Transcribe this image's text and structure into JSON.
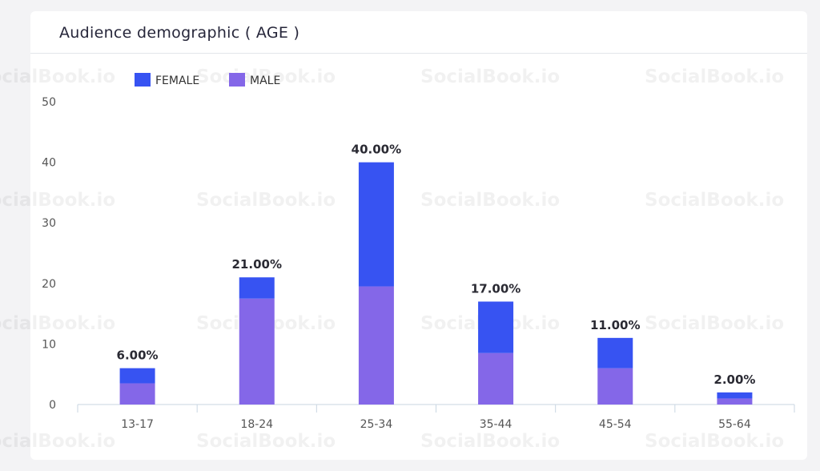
{
  "title": "Audience demographic ( AGE )",
  "watermark": "SocialBook.io",
  "chart_data": {
    "type": "bar",
    "stacked": true,
    "categories": [
      "13-17",
      "18-24",
      "25-34",
      "35-44",
      "45-54",
      "55-64"
    ],
    "series": [
      {
        "name": "MALE",
        "color": "#8467e8",
        "values": [
          3.5,
          17.5,
          19.5,
          8.5,
          6.0,
          1.0
        ]
      },
      {
        "name": "FEMALE",
        "color": "#3753f2",
        "values": [
          2.5,
          3.5,
          20.5,
          8.5,
          5.0,
          1.0
        ]
      }
    ],
    "totals_labels": [
      "6.00%",
      "21.00%",
      "40.00%",
      "17.00%",
      "11.00%",
      "2.00%"
    ],
    "legend_order": [
      "FEMALE",
      "MALE"
    ],
    "legend_position": "top-left",
    "ylim": [
      0,
      50
    ],
    "yticks": [
      0,
      10,
      20,
      30,
      40,
      50
    ],
    "grid": false
  }
}
